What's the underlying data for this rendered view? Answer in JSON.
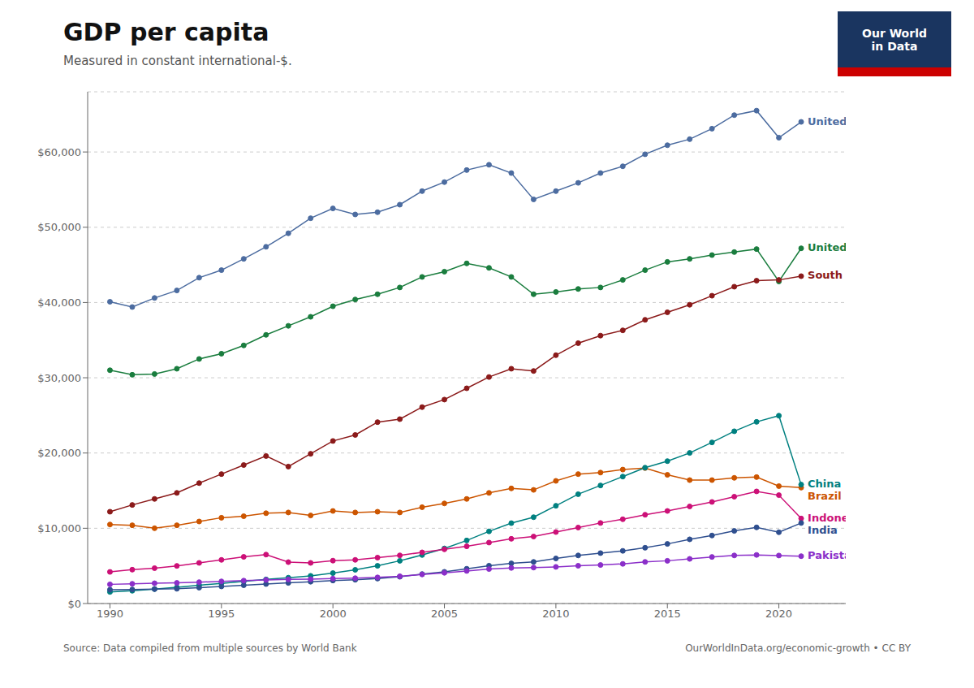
{
  "chart_data": {
    "type": "line",
    "title": "GDP per capita",
    "subtitle": "Measured in constant international-$.",
    "source": [
      "Source: Data compiled from multiple sources by World Bank",
      "OurWorldInData.org/economic-growth • CC BY"
    ],
    "annotations": [
      "Our World",
      "in Data"
    ],
    "x": [
      1990,
      1991,
      1992,
      1993,
      1994,
      1995,
      1996,
      1997,
      1998,
      1999,
      2000,
      2001,
      2002,
      2003,
      2004,
      2005,
      2006,
      2007,
      2008,
      2009,
      2010,
      2011,
      2012,
      2013,
      2014,
      2015,
      2016,
      2017,
      2018,
      2019,
      2020,
      2021
    ],
    "series": [
      {
        "name": "United States",
        "color": "#4C6CA0",
        "values": [
          40100,
          39400,
          40600,
          41600,
          43300,
          44300,
          45800,
          47400,
          49200,
          51200,
          52500,
          51700,
          52000,
          53000,
          54800,
          56000,
          57600,
          58300,
          57200,
          53700,
          54800,
          55900,
          57200,
          58100,
          59700,
          60900,
          61700,
          63100,
          64900,
          65500,
          61900,
          64000
        ]
      },
      {
        "name": "United Kingdom",
        "color": "#1a7d3e",
        "values": [
          31000,
          30400,
          30500,
          31200,
          32500,
          33200,
          34300,
          35700,
          36900,
          38100,
          39500,
          40400,
          41100,
          42000,
          43400,
          44100,
          45200,
          44600,
          43400,
          41100,
          41400,
          41800,
          42000,
          43000,
          44300,
          45400,
          45800,
          46300,
          46700,
          47100,
          42800,
          47200
        ]
      },
      {
        "name": "South Korea",
        "color": "#8B1A1A",
        "values": [
          12200,
          13100,
          13900,
          14700,
          16000,
          17200,
          18400,
          19600,
          18200,
          19900,
          21600,
          22400,
          24100,
          24500,
          26100,
          27100,
          28600,
          30100,
          31200,
          30900,
          33000,
          34600,
          35600,
          36300,
          37700,
          38700,
          39700,
          40900,
          42100,
          42900,
          43000,
          43500
        ]
      },
      {
        "name": "Brazil",
        "color": "#CC5500",
        "values": [
          10500,
          10400,
          10000,
          10400,
          10900,
          11400,
          11600,
          12000,
          12100,
          11700,
          12300,
          12100,
          12200,
          12100,
          12800,
          13300,
          13900,
          14700,
          15300,
          15100,
          16300,
          17200,
          17400,
          17800,
          18000,
          17100,
          16400,
          16400,
          16700,
          16800,
          15600,
          15400
        ]
      },
      {
        "name": "China",
        "color": "#008080",
        "values": [
          1540,
          1700,
          1920,
          2150,
          2430,
          2680,
          2940,
          3200,
          3430,
          3680,
          4040,
          4480,
          5010,
          5680,
          6450,
          7320,
          8380,
          9590,
          10680,
          11470,
          12990,
          14530,
          15690,
          16870,
          18050,
          18920,
          20010,
          21410,
          22890,
          24140,
          24960,
          15800
        ]
      },
      {
        "name": "Indonesia",
        "color": "#CC1077",
        "values": [
          4200,
          4500,
          4700,
          5000,
          5400,
          5800,
          6200,
          6500,
          5500,
          5400,
          5700,
          5800,
          6100,
          6400,
          6800,
          7200,
          7600,
          8100,
          8600,
          8900,
          9500,
          10100,
          10700,
          11200,
          11800,
          12300,
          12900,
          13500,
          14200,
          14900,
          14400,
          11300
        ]
      },
      {
        "name": "India",
        "color": "#2F4F8F",
        "values": [
          1840,
          1860,
          1920,
          1960,
          2110,
          2270,
          2430,
          2590,
          2740,
          2900,
          3060,
          3160,
          3310,
          3560,
          3910,
          4210,
          4620,
          5030,
          5330,
          5530,
          5990,
          6390,
          6700,
          7000,
          7410,
          7920,
          8530,
          9040,
          9650,
          10120,
          9470,
          10700
        ]
      },
      {
        "name": "Pakistan",
        "color": "#8B2FC9",
        "values": [
          2550,
          2620,
          2690,
          2740,
          2840,
          2940,
          3040,
          3140,
          3200,
          3230,
          3310,
          3370,
          3470,
          3620,
          3870,
          4080,
          4330,
          4580,
          4730,
          4780,
          4870,
          5020,
          5120,
          5270,
          5530,
          5680,
          5930,
          6190,
          6390,
          6460,
          6380,
          6290
        ]
      }
    ],
    "xlim": [
      1989,
      2023
    ],
    "xticks": [
      1990,
      1995,
      2000,
      2005,
      2010,
      2015,
      2020
    ],
    "ylim": [
      0,
      68000
    ],
    "yticks": [
      {
        "value": 0,
        "label": "$0"
      },
      {
        "value": 10000,
        "label": "$10,000"
      },
      {
        "value": 20000,
        "label": "$20,000"
      },
      {
        "value": 30000,
        "label": "$30,000"
      },
      {
        "value": 40000,
        "label": "$40,000"
      },
      {
        "value": 50000,
        "label": "$50,000"
      },
      {
        "value": 60000,
        "label": "$60,000"
      }
    ],
    "grid": true,
    "marker": "circle"
  }
}
